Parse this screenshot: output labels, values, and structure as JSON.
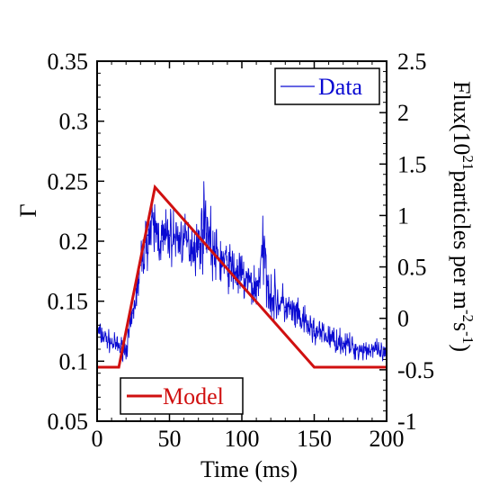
{
  "chart_data": {
    "type": "line",
    "title": "",
    "xlabel": "Time (ms)",
    "ylabel": "Γ",
    "ylabel_right": "Flux(10²¹particles per m⁻²s⁻¹)",
    "ylabel_right_parts": {
      "prefix": "Flux(10",
      "exp1": "21",
      "mid": "particles per m",
      "exp2": "-2",
      "mid2": "s",
      "exp3": "-1",
      "suffix": ")"
    },
    "xlim": [
      0,
      200
    ],
    "ylim": [
      0.05,
      0.35
    ],
    "ylim_right": [
      -1,
      2.5
    ],
    "x_ticks": [
      "0",
      "50",
      "100",
      "150",
      "200"
    ],
    "y_ticks": [
      "0.05",
      "0.1",
      "0.15",
      "0.2",
      "0.25",
      "0.3",
      "0.35"
    ],
    "y_right_ticks": [
      "-1",
      "-0.5",
      "0",
      "0.5",
      "1",
      "1.5",
      "2",
      "2.5"
    ],
    "grid": false,
    "legend": [
      {
        "name": "Data",
        "color": "#0a0ad2",
        "placement": "top-right"
      },
      {
        "name": "Model",
        "color": "#d01010",
        "placement": "bottom-left"
      }
    ],
    "series": [
      {
        "name": "Model",
        "color": "#d01010",
        "x": [
          0,
          15,
          40,
          150,
          200
        ],
        "y": [
          0.095,
          0.095,
          0.245,
          0.095,
          0.095
        ]
      },
      {
        "name": "Data",
        "color": "#0a0ad2",
        "x": [
          0,
          10,
          20,
          25,
          30,
          35,
          40,
          45,
          50,
          60,
          70,
          75,
          80,
          90,
          100,
          110,
          115,
          120,
          130,
          140,
          150,
          160,
          170,
          180,
          190,
          200
        ],
        "y": [
          0.125,
          0.115,
          0.11,
          0.14,
          0.18,
          0.205,
          0.21,
          0.2,
          0.205,
          0.2,
          0.195,
          0.22,
          0.19,
          0.18,
          0.17,
          0.16,
          0.19,
          0.155,
          0.145,
          0.135,
          0.125,
          0.12,
          0.115,
          0.11,
          0.11,
          0.105
        ],
        "y_spread": [
          0.015,
          0.012,
          0.013,
          0.02,
          0.03,
          0.035,
          0.04,
          0.035,
          0.035,
          0.03,
          0.035,
          0.05,
          0.035,
          0.03,
          0.03,
          0.03,
          0.045,
          0.03,
          0.025,
          0.02,
          0.018,
          0.016,
          0.015,
          0.014,
          0.013,
          0.012
        ]
      }
    ]
  }
}
